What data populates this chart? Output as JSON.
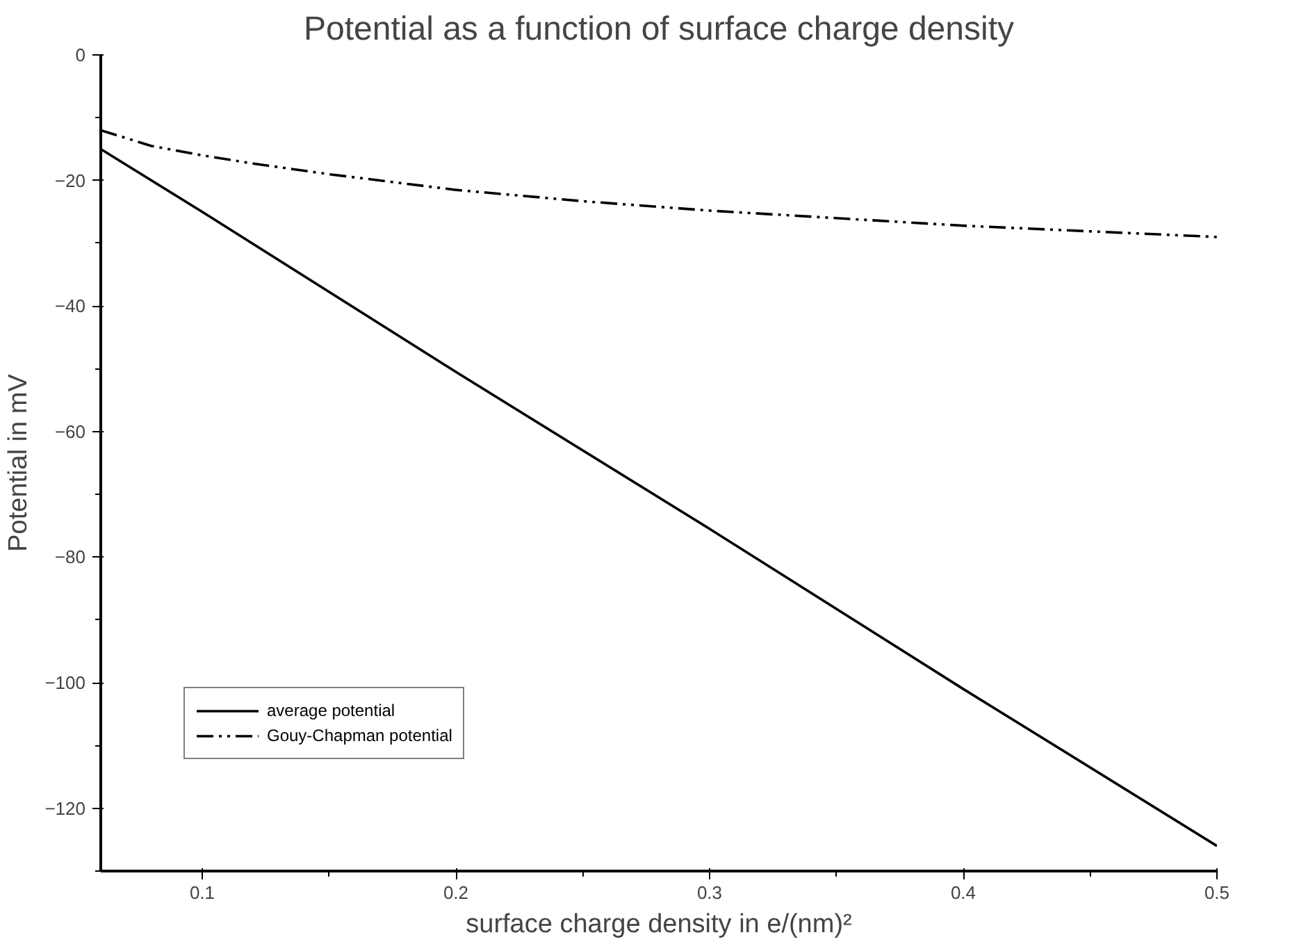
{
  "chart_data": {
    "type": "line",
    "title": "Potential as a function of surface charge density",
    "xlabel": "surface charge density in e/(nm)²",
    "ylabel": "Potential in mV",
    "xlim": [
      0.06,
      0.5
    ],
    "xticks": [
      0.1,
      0.2,
      0.3,
      0.4,
      0.5
    ],
    "ylim": [
      -130,
      0
    ],
    "yticks": [
      0,
      -20,
      -40,
      -60,
      -80,
      -100,
      -120
    ],
    "grid": false,
    "legend": "bottom left",
    "series": [
      {
        "name": "average potential",
        "color": "#000000",
        "line_style": "solid",
        "x": [
          0.06,
          0.1,
          0.2,
          0.3,
          0.4,
          0.5
        ],
        "values": [
          -15,
          -25,
          -50.5,
          -75.5,
          -101,
          -126
        ]
      },
      {
        "name": "Gouy-Chapman potential",
        "color": "#000000",
        "line_style": "dashdot",
        "x": [
          0.06,
          0.08,
          0.1,
          0.12,
          0.15,
          0.2,
          0.25,
          0.3,
          0.35,
          0.4,
          0.45,
          0.5
        ],
        "values": [
          -12,
          -14.5,
          -16,
          -17.3,
          -19,
          -21.5,
          -23.3,
          -24.8,
          -26,
          -27.2,
          -28.1,
          -29
        ]
      }
    ]
  }
}
